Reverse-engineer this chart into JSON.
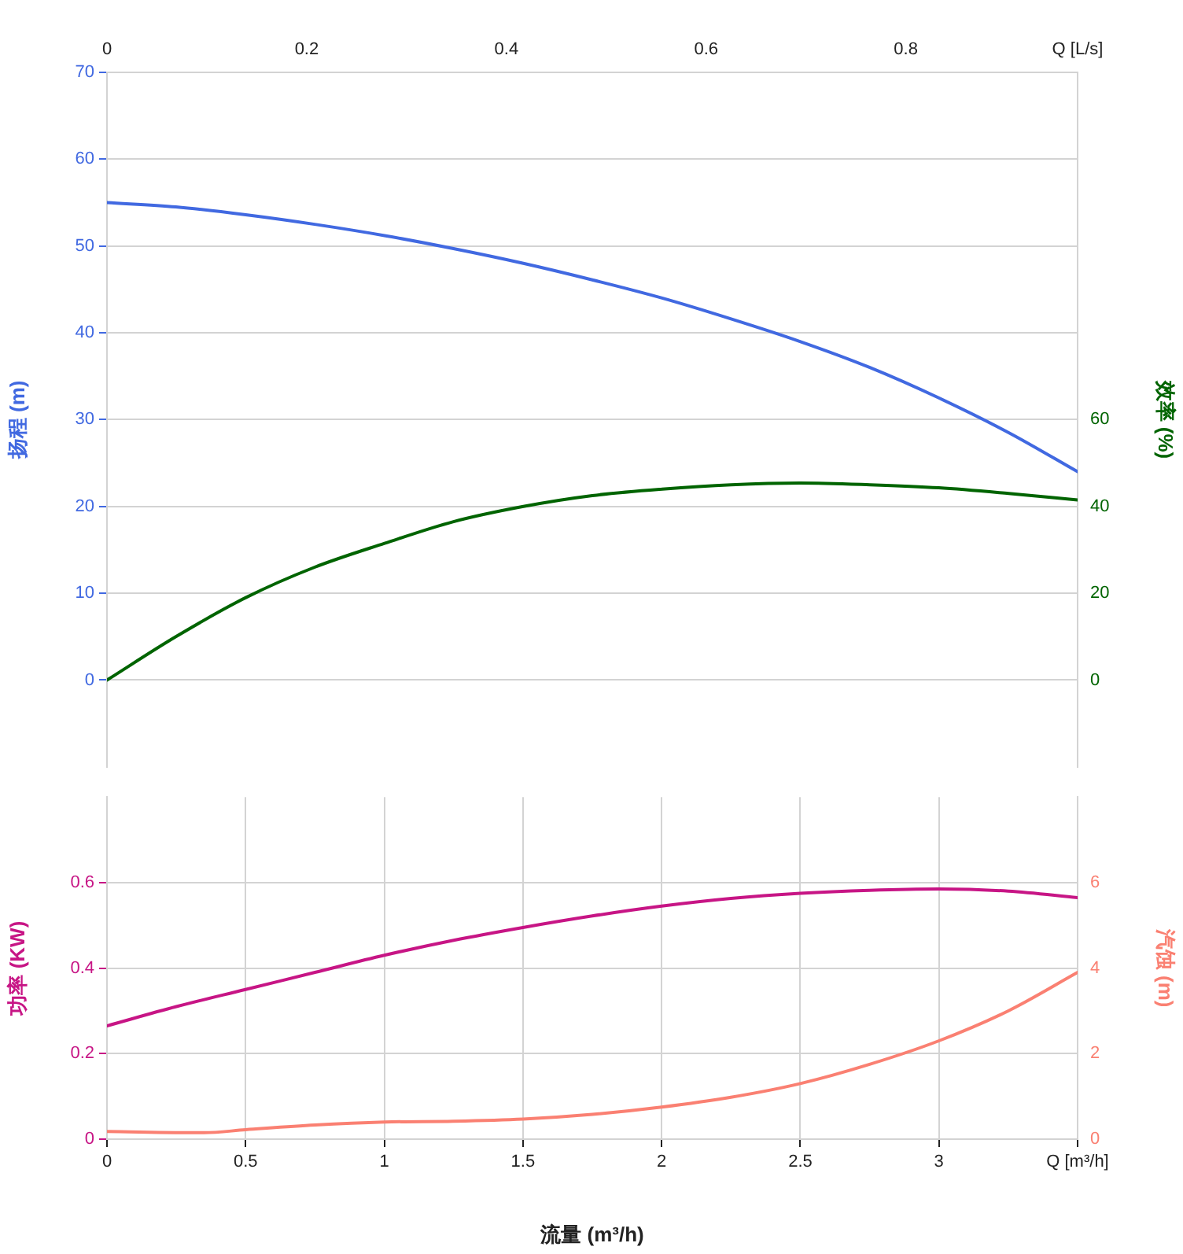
{
  "chart_data": [
    {
      "type": "line",
      "ylabel": "扬程 (m)",
      "y2label": "效率 (%)",
      "xlim": [
        0,
        0.972
      ],
      "xticks": [
        0,
        0.2,
        0.4,
        0.6,
        0.8,
        {
          "value": 0.972,
          "label": "Q [L/s]"
        }
      ],
      "ylim": [
        -10,
        70
      ],
      "yticks": [
        0,
        10,
        20,
        30,
        40,
        50,
        60,
        70
      ],
      "y2lim": [
        -20,
        140
      ],
      "y2ticks": [
        0,
        20,
        40,
        60
      ],
      "grid": "y",
      "legend": false,
      "marker": "none",
      "line_style": "solid",
      "series": [
        {
          "color": "#4169e1",
          "x": [
            0,
            0.069,
            0.139,
            0.208,
            0.278,
            0.347,
            0.417,
            0.486,
            0.556,
            0.625,
            0.694,
            0.764,
            0.833,
            0.903,
            0.972
          ],
          "values": [
            55,
            54.5,
            53.6,
            52.5,
            51.2,
            49.7,
            48,
            46.1,
            44,
            41.6,
            39,
            36,
            32.5,
            28.5,
            24
          ]
        },
        {
          "color": "#006400",
          "axis": "y2",
          "x": [
            0,
            0.069,
            0.139,
            0.208,
            0.278,
            0.347,
            0.417,
            0.486,
            0.556,
            0.625,
            0.694,
            0.764,
            0.833,
            0.903,
            0.972
          ],
          "values": [
            0,
            10,
            19,
            26,
            31.5,
            36.5,
            40,
            42.5,
            44,
            45,
            45.4,
            45,
            44.3,
            43,
            41.5
          ]
        }
      ]
    },
    {
      "type": "line",
      "ylabel": "功率 (KW)",
      "y2label": "汽蚀 (m)",
      "xlabel": "流量 (m³/h)",
      "xlim": [
        0,
        3.5
      ],
      "xticks": [
        0,
        0.5,
        1,
        1.5,
        2,
        2.5,
        3,
        {
          "value": 3.5,
          "label": "Q [m³/h]"
        }
      ],
      "ylim": [
        0,
        0.8
      ],
      "yticks": [
        0,
        0.2,
        0.4,
        0.6
      ],
      "y2lim": [
        0,
        8
      ],
      "y2ticks": [
        0,
        2,
        4,
        6
      ],
      "grid": true,
      "legend": false,
      "marker": "none",
      "line_style": "solid",
      "series": [
        {
          "color": "#c71585",
          "x": [
            0,
            0.25,
            0.5,
            0.75,
            1,
            1.25,
            1.5,
            1.75,
            2,
            2.25,
            2.5,
            2.75,
            3,
            3.25,
            3.5
          ],
          "values": [
            0.265,
            0.31,
            0.35,
            0.39,
            0.43,
            0.465,
            0.495,
            0.522,
            0.545,
            0.563,
            0.575,
            0.582,
            0.585,
            0.58,
            0.565
          ]
        },
        {
          "color": "#fa8072",
          "axis": "y2",
          "x": [
            0,
            0.35,
            0.5,
            0.75,
            1,
            1.25,
            1.5,
            1.75,
            2,
            2.25,
            2.5,
            2.75,
            3,
            3.25,
            3.5
          ],
          "values": [
            0.18,
            0.15,
            0.22,
            0.33,
            0.4,
            0.42,
            0.47,
            0.58,
            0.75,
            0.98,
            1.3,
            1.75,
            2.3,
            3.0,
            3.9
          ]
        }
      ]
    }
  ]
}
